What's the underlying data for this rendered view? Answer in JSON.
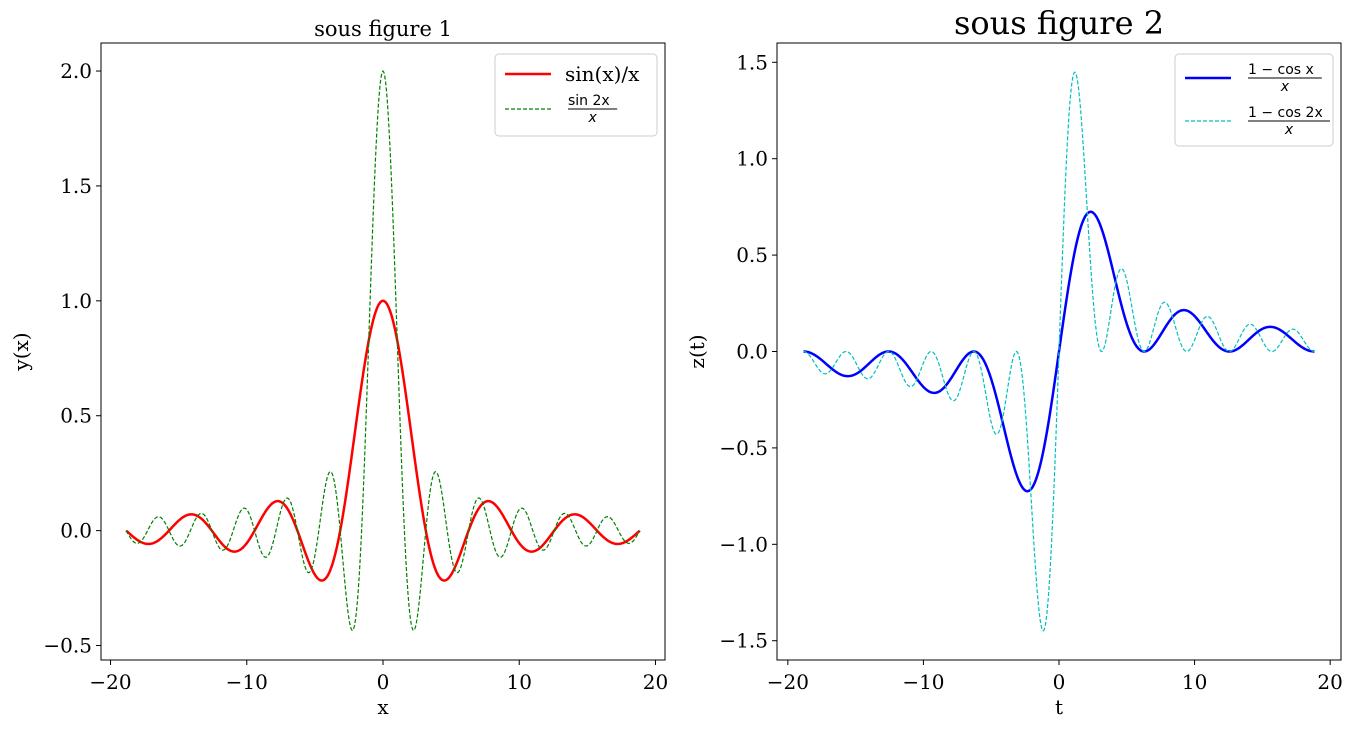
{
  "chart_data": [
    {
      "type": "line",
      "title": "sous figure 1",
      "xlabel": "x",
      "ylabel": "y(x)",
      "xlim": [
        -20.7,
        20.7
      ],
      "ylim": [
        -0.563,
        2.122
      ],
      "xticks": [
        -20,
        -10,
        0,
        10,
        20
      ],
      "xtick_labels": [
        "−20",
        "−10",
        "0",
        "10",
        "20"
      ],
      "yticks": [
        -0.5,
        0.0,
        0.5,
        1.0,
        1.5,
        2.0
      ],
      "ytick_labels": [
        "−0.5",
        "0.0",
        "0.5",
        "1.0",
        "1.5",
        "2.0"
      ],
      "grid": false,
      "legend_position": "top-right",
      "x_range": [
        -18.85,
        18.85
      ],
      "n_points": 600,
      "series": [
        {
          "name": "sin(x)/x",
          "legend_num": "",
          "legend_den": "",
          "expression": "sin(x)/x",
          "color": "#ff0000",
          "style": "solid",
          "peak": [
            0,
            1.0
          ],
          "min": [
            -4.49,
            -0.217
          ]
        },
        {
          "name": "sin 2x / x",
          "legend_num": "sin 2x",
          "legend_den": "x",
          "expression": "sin(2x)/x",
          "color": "#008000",
          "style": "dashed",
          "peak": [
            0,
            2.0
          ],
          "min": [
            -2.25,
            -0.434
          ]
        }
      ]
    },
    {
      "type": "line",
      "title": "sous figure 2",
      "xlabel": "t",
      "ylabel": "z(t)",
      "xlim": [
        -20.8,
        20.8
      ],
      "ylim": [
        -1.6,
        1.6
      ],
      "xticks": [
        -20,
        -10,
        0,
        10,
        20
      ],
      "xtick_labels": [
        "−20",
        "−10",
        "0",
        "10",
        "20"
      ],
      "yticks": [
        -1.5,
        -1.0,
        -0.5,
        0.0,
        0.5,
        1.0,
        1.5
      ],
      "ytick_labels": [
        "−1.5",
        "−1.0",
        "−0.5",
        "0.0",
        "0.5",
        "1.0",
        "1.5"
      ],
      "grid": false,
      "legend_position": "top-right",
      "x_range": [
        -18.85,
        18.85
      ],
      "n_points": 600,
      "series": [
        {
          "name": "(1 − cos x)/x",
          "legend_num": "1 − cos x",
          "legend_den": "x",
          "expression": "(1-cos(x))/x",
          "color": "#0000ff",
          "style": "solid",
          "peak": [
            2.33,
            0.725
          ]
        },
        {
          "name": "(1 − cos 2x)/x",
          "legend_num": "1 − cos 2x",
          "legend_den": "x",
          "expression": "(1-cos(2x))/x",
          "color": "#00bfbf",
          "style": "dashed",
          "peak": [
            1.17,
            1.45
          ]
        }
      ]
    }
  ]
}
